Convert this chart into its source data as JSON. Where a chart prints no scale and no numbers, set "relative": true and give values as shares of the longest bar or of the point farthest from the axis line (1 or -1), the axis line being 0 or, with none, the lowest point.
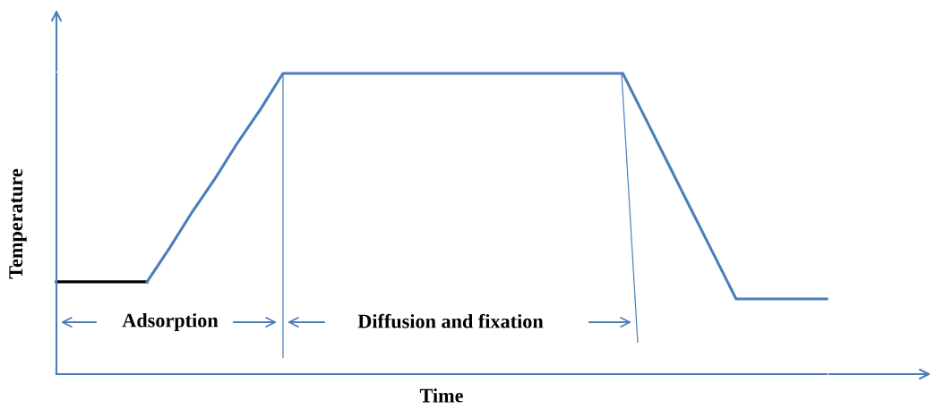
{
  "chart_data": {
    "type": "line",
    "xlabel": "Time",
    "ylabel": "Temperature",
    "relative": true,
    "grid": false,
    "legend": false,
    "annotations": [
      "Adsorption",
      "Diffusion and fixation"
    ],
    "categories": [
      null,
      null,
      null,
      null,
      null,
      null,
      null,
      null,
      null,
      null,
      null,
      null,
      null,
      null,
      null,
      null,
      null,
      null,
      null,
      null,
      null,
      null,
      null,
      null,
      null,
      null,
      null,
      null,
      null,
      null,
      null,
      null,
      null,
      null,
      null
    ],
    "series": [
      {
        "color": "#000000",
        "values": [
          0.307,
          0.307,
          0.307,
          0.307,
          0.307,
          null,
          null,
          null,
          null,
          null,
          null,
          null,
          null,
          null,
          null,
          null,
          null,
          null,
          null,
          null,
          null,
          null,
          null,
          null,
          null,
          null,
          null,
          null,
          null,
          null,
          null,
          null,
          null,
          null,
          null
        ]
      },
      {
        "color": "#4a7ebb",
        "values": [
          null,
          null,
          null,
          null,
          0.307,
          0.42,
          0.54,
          0.65,
          0.77,
          0.88,
          1,
          1,
          1,
          1,
          1,
          1,
          1,
          1,
          1,
          1,
          1,
          1,
          1,
          1,
          1,
          1,
          0.85,
          0.7,
          0.55,
          0.4,
          0.25,
          0.25,
          0.25,
          0.25,
          0.25
        ]
      }
    ]
  }
}
